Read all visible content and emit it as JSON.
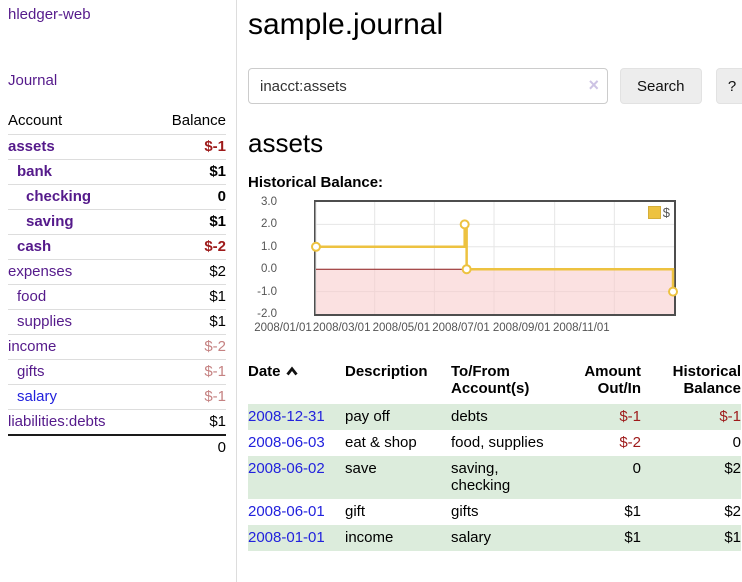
{
  "colors": {
    "purple": "#551a8b",
    "blue": "#2222dd",
    "neg": "#9e1a1a",
    "negfaded": "#c58282",
    "rowgreen": "#dcecdc",
    "gold": "#edc240",
    "zeroline": "#8b1a1a",
    "gridline": "#e6e6e6",
    "negative_region": "#f8c8c8"
  },
  "app": {
    "brand": "hledger-web",
    "nav_journal": "Journal"
  },
  "sidebar": {
    "headers": {
      "account": "Account",
      "balance": "Balance"
    },
    "accounts": [
      {
        "name": "assets",
        "indent": 1,
        "bold": true,
        "balance": "$-1",
        "balance_class": "neg"
      },
      {
        "name": "bank",
        "indent": 2,
        "bold": true,
        "balance": "$1",
        "balance_class": ""
      },
      {
        "name": "checking",
        "indent": 3,
        "bold": true,
        "balance": "0",
        "balance_class": ""
      },
      {
        "name": "saving",
        "indent": 3,
        "bold": true,
        "balance": "$1",
        "balance_class": ""
      },
      {
        "name": "cash",
        "indent": 2,
        "bold": true,
        "balance": "$-2",
        "balance_class": "neg"
      },
      {
        "name": "expenses",
        "indent": 1,
        "bold": false,
        "balance": "$2",
        "balance_class": ""
      },
      {
        "name": "food",
        "indent": 2,
        "bold": false,
        "balance": "$1",
        "balance_class": ""
      },
      {
        "name": "supplies",
        "indent": 2,
        "bold": false,
        "balance": "$1",
        "balance_class": ""
      },
      {
        "name": "income",
        "indent": 1,
        "bold": false,
        "balance": "$-2",
        "balance_class": "neg-faded"
      },
      {
        "name": "gifts",
        "indent": 2,
        "bold": false,
        "balance": "$-1",
        "balance_class": "neg-faded"
      },
      {
        "name": "salary",
        "indent": 2,
        "bold": false,
        "balance": "$-1",
        "balance_class": "neg-faded",
        "link_color": "blue"
      },
      {
        "name": "liabilities:debts",
        "indent": 1,
        "bold": false,
        "balance": "$1",
        "balance_class": ""
      }
    ],
    "total": "0"
  },
  "header": {
    "title": "sample.journal"
  },
  "search": {
    "value": "inacct:assets",
    "clear_icon": "×",
    "button_label": "Search",
    "help_label": "?"
  },
  "account_page": {
    "heading": "assets",
    "chart_label": "Historical Balance:"
  },
  "chart_data": {
    "type": "line",
    "style": "step",
    "title": "Historical Balance",
    "series": [
      {
        "name": "$",
        "color": "#edc240",
        "points": [
          {
            "date": "2008-01-01",
            "value": 1
          },
          {
            "date": "2008-06-01",
            "value": 2
          },
          {
            "date": "2008-06-03",
            "value": 0
          },
          {
            "date": "2008-12-31",
            "value": -1
          }
        ]
      }
    ],
    "x_range": [
      "2008-01-01",
      "2009-01-01"
    ],
    "x_ticks": [
      "2008/01/01",
      "2008/03/01",
      "2008/05/01",
      "2008/07/01",
      "2008/09/01",
      "2008/11/01"
    ],
    "y_ticks": [
      3.0,
      2.0,
      1.0,
      0.0,
      -1.0,
      -2.0
    ],
    "y_tick_labels": [
      "3.0",
      "2.0",
      "1.0",
      "0.0",
      "-1.0",
      "-2.0"
    ],
    "ylim": [
      -2,
      3
    ],
    "grid": true,
    "negative_region_shaded": true,
    "legend": {
      "label": "$",
      "position": "top-right"
    }
  },
  "register": {
    "columns": {
      "date": "Date",
      "description": "Description",
      "accounts": "To/From Account(s)",
      "amount": "Amount Out/In",
      "balance": "Historical Balance"
    },
    "rows": [
      {
        "date": "2008-12-31",
        "description": "pay off",
        "accounts": "debts",
        "amount": "$-1",
        "amount_class": "neg",
        "balance": "$-1",
        "balance_class": "neg"
      },
      {
        "date": "2008-06-03",
        "description": "eat & shop",
        "accounts": "food, supplies",
        "amount": "$-2",
        "amount_class": "neg",
        "balance": "0",
        "balance_class": ""
      },
      {
        "date": "2008-06-02",
        "description": "save",
        "accounts": "saving, checking",
        "amount": "0",
        "amount_class": "",
        "balance": "$2",
        "balance_class": ""
      },
      {
        "date": "2008-06-01",
        "description": "gift",
        "accounts": "gifts",
        "amount": "$1",
        "amount_class": "",
        "balance": "$2",
        "balance_class": ""
      },
      {
        "date": "2008-01-01",
        "description": "income",
        "accounts": "salary",
        "amount": "$1",
        "amount_class": "",
        "balance": "$1",
        "balance_class": ""
      }
    ]
  }
}
